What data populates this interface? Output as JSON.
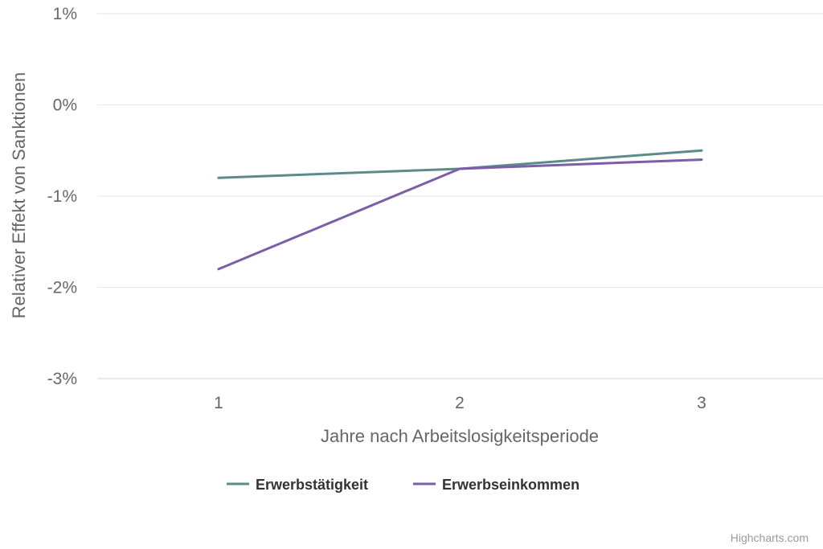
{
  "chart_data": {
    "type": "line",
    "xlabel": "Jahre nach Arbeitslosigkeitsperiode",
    "ylabel": "Relativer Effekt von Sanktionen",
    "categories": [
      "1",
      "2",
      "3"
    ],
    "ylim": [
      -3,
      1
    ],
    "y_ticks": [
      1,
      0,
      -1,
      -2,
      -3
    ],
    "y_tick_labels": [
      "1%",
      "0%",
      "-1%",
      "-2%",
      "-3%"
    ],
    "grid": true,
    "legend_position": "bottom-center",
    "series": [
      {
        "name": "Erwerbstätigkeit",
        "color": "#5b8c8a",
        "values": [
          -0.8,
          -0.7,
          -0.5
        ]
      },
      {
        "name": "Erwerbseinkommen",
        "color": "#7b5ea7",
        "values": [
          -1.8,
          -0.7,
          -0.6
        ]
      }
    ]
  },
  "credits": "Highcharts.com"
}
